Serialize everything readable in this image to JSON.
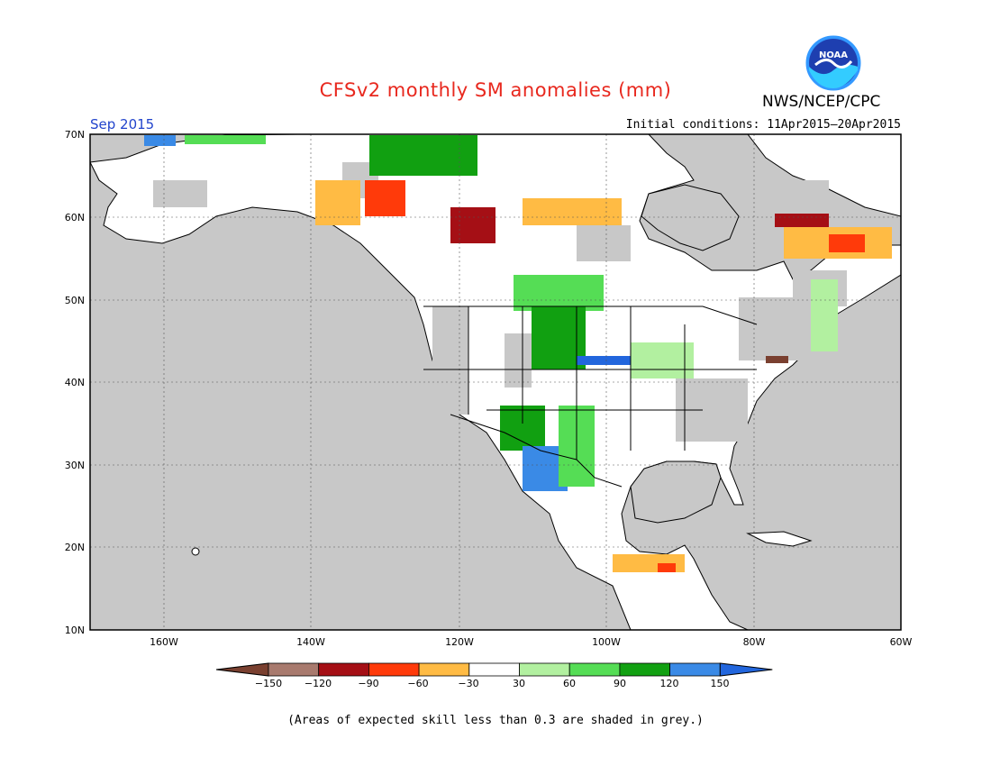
{
  "title": "CFSv2 monthly SM anomalies (mm)",
  "org": "NWS/NCEP/CPC",
  "logo_text": "NOAA",
  "period": "Sep 2015",
  "initial_conditions": "Initial conditions: 11Apr2015–20Apr2015",
  "footnote": "(Areas of expected skill less than 0.3 are shaded in grey.)",
  "map": {
    "lat_labels": [
      "70N",
      "60N",
      "50N",
      "40N",
      "30N",
      "20N",
      "10N"
    ],
    "lon_labels": [
      "160W",
      "140W",
      "120W",
      "100W",
      "80W",
      "60W"
    ],
    "extent": {
      "lon_min": -172,
      "lon_max": -60,
      "lat_min": 10,
      "lat_max": 70
    },
    "colors": {
      "ocean": "#c8c8c8",
      "low_skill": "#c8c8c8",
      "neutral": "#ffffff"
    }
  },
  "colorbar": {
    "ticks": [
      "−150",
      "−120",
      "−90",
      "−60",
      "−30",
      "30",
      "60",
      "90",
      "120",
      "150"
    ],
    "colors": [
      "#7a4030",
      "#a87a6e",
      "#a50f15",
      "#ff3a0a",
      "#ffbb44",
      "#ffffff",
      "#b2f0a0",
      "#55dd55",
      "#11a011",
      "#3a8ae6",
      "#2266dd"
    ]
  }
}
